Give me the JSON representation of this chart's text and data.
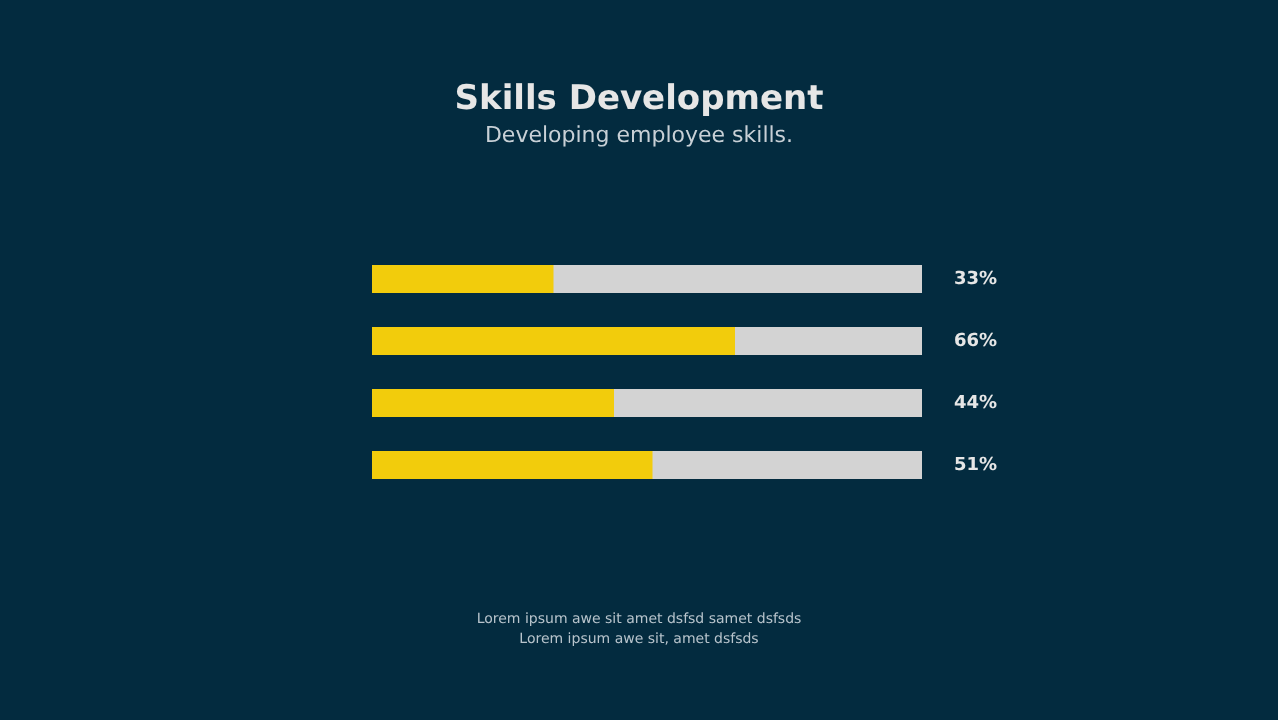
{
  "chart_data": {
    "type": "bar",
    "orientation": "horizontal",
    "title": "Skills Development",
    "subtitle": "Developing employee skills.",
    "categories": [
      null,
      null,
      null,
      null
    ],
    "values": [
      33,
      66,
      44,
      51
    ],
    "color": "#f2cc0c",
    "value_labels": [
      "33%",
      "66%",
      "44%",
      "51%"
    ],
    "xlim": [
      0,
      100
    ],
    "tick_labels": false,
    "grid": false,
    "annotations": [
      "Lorem ipsum awe sit amet dsfsd samet dsfsds",
      "Lorem ipsum awe sit, amet dsfsds"
    ]
  }
}
